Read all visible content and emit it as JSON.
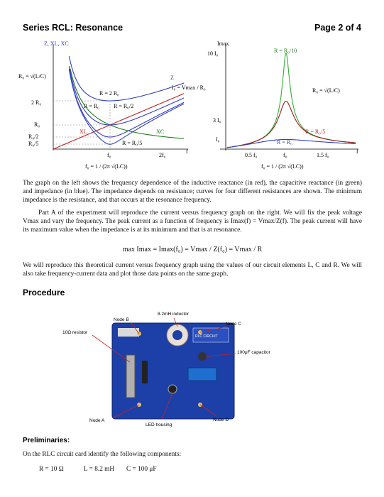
{
  "header": {
    "title": "Series RCL: Resonance",
    "page": "Page 2 of 4"
  },
  "figure_left": {
    "axis_label": "Z, XL, XC",
    "r0_formula": "R₀ = √(L/C)",
    "y_ticks": [
      "2 R₀",
      "R₀",
      "R₀/2",
      "R₀/5"
    ],
    "curve_labels": [
      "R = 2 R₀",
      "R = R₀",
      "R = R₀/2",
      "R = R₀/5",
      "Z",
      "XL",
      "XC"
    ],
    "x_ticks": [
      "f₀",
      "2f₀"
    ],
    "x_axis_label": "f",
    "f0_formula": "f₀ = 1 / (2π √(LC))"
  },
  "figure_right": {
    "axis_label": "Imax",
    "i0_formula": "I₀ = Vmax / R₀",
    "y_ticks": [
      "10 I₀",
      "3 I₀",
      "I₀"
    ],
    "curve_labels": [
      "R = R₀/10",
      "R = R₀/5",
      "R = R₀"
    ],
    "r0_formula": "R₀ = √(L/C)",
    "x_ticks": [
      "0.5 f₀",
      "f₀",
      "1.5 f₀"
    ],
    "x_axis_label": "f",
    "f0_formula": "f₀ = 1 / (2π √(LC))"
  },
  "body": {
    "paragraph_1": "The graph on the left shows the frequency dependence of the inductive reactance (in red), the capacitive reactance (in green) and impedance (in blue). The impedance depends on resistance; curves for four different resistances are shown. The minimum impedance is the resistance, and that occurs at the resonance frequency.",
    "paragraph_2": "Part A of the experiment will reproduce the current versus frequency graph on the right. We will fix the peak voltage Vmax and vary the frequency. The peak current as a function of frequency is Imax(f) = Vmax/Z(f). The peak current will have its maximum value when the impedance is at its minimum and that is at resonance.",
    "equation": "max Imax = Imax(f₀) = Vmax / Z(f₀) = Vmax / R",
    "paragraph_3": "We will reproduce this theoretical current versus frequency graph using the values of our circuit elements L, C and R. We will also take frequency-current data and plot those data points on the same graph."
  },
  "procedure": {
    "heading": "Procedure",
    "photo_labels": [
      "8.2mH inductor",
      "Node B",
      "Node C",
      "10Ω resistor",
      "100μF capacitor",
      "Node A",
      "LED housing",
      "Node D"
    ],
    "board_text": [
      "RLC CIRCUIT"
    ]
  },
  "preliminaries": {
    "heading": "Preliminaries:",
    "text": "On the RLC circuit card identify the following components:",
    "components": [
      "R = 10 Ω",
      "L = 8.2 mH",
      "C = 100 μF"
    ]
  }
}
